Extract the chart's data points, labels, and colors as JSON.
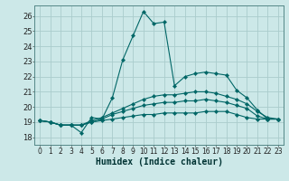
{
  "title": "",
  "xlabel": "Humidex (Indice chaleur)",
  "background_color": "#cce8e8",
  "grid_color": "#aacccc",
  "line_color": "#006666",
  "xlim": [
    -0.5,
    23.5
  ],
  "ylim": [
    17.5,
    26.7
  ],
  "yticks": [
    18,
    19,
    20,
    21,
    22,
    23,
    24,
    25,
    26
  ],
  "xticks": [
    0,
    1,
    2,
    3,
    4,
    5,
    6,
    7,
    8,
    9,
    10,
    11,
    12,
    13,
    14,
    15,
    16,
    17,
    18,
    19,
    20,
    21,
    22,
    23
  ],
  "series": [
    [
      19.1,
      19.0,
      18.8,
      18.8,
      18.3,
      19.3,
      19.2,
      20.6,
      23.1,
      24.7,
      26.3,
      25.5,
      25.6,
      21.4,
      22.0,
      22.2,
      22.3,
      22.2,
      22.1,
      21.1,
      20.6,
      19.8,
      19.2,
      19.2
    ],
    [
      19.1,
      19.0,
      18.8,
      18.8,
      18.8,
      19.1,
      19.3,
      19.6,
      19.9,
      20.2,
      20.5,
      20.7,
      20.8,
      20.8,
      20.9,
      21.0,
      21.0,
      20.9,
      20.7,
      20.5,
      20.2,
      19.7,
      19.3,
      19.2
    ],
    [
      19.1,
      19.0,
      18.8,
      18.8,
      18.8,
      19.0,
      19.2,
      19.5,
      19.7,
      19.9,
      20.1,
      20.2,
      20.3,
      20.3,
      20.4,
      20.4,
      20.5,
      20.4,
      20.3,
      20.1,
      19.9,
      19.4,
      19.2,
      19.2
    ],
    [
      19.1,
      19.0,
      18.8,
      18.8,
      18.8,
      19.0,
      19.1,
      19.2,
      19.3,
      19.4,
      19.5,
      19.5,
      19.6,
      19.6,
      19.6,
      19.6,
      19.7,
      19.7,
      19.7,
      19.5,
      19.3,
      19.2,
      19.2,
      19.2
    ]
  ],
  "xlabel_fontsize": 7,
  "tick_fontsize": 5.5,
  "marker_size": 2.2
}
